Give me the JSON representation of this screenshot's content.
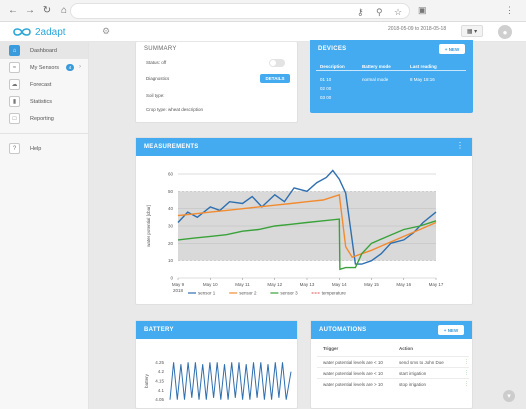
{
  "browser": {
    "back_icon": "arrow-left-icon",
    "forward_icon": "arrow-right-icon",
    "reload_icon": "reload-icon",
    "home_icon": "home-icon"
  },
  "header": {
    "logo_text": "2adapt",
    "date_range": "2018-05-09 to 2018-05-18"
  },
  "sidebar": {
    "items": [
      {
        "label": "Dashboard",
        "icon": "home-icon"
      },
      {
        "label": "My Sensors",
        "icon": "rss-icon",
        "badge": "4"
      },
      {
        "label": "Forecast",
        "icon": "cloud-icon"
      },
      {
        "label": "Statistics",
        "icon": "chart-icon"
      },
      {
        "label": "Reporting",
        "icon": "document-icon"
      },
      {
        "label": "Help",
        "icon": "help-icon"
      }
    ]
  },
  "summary": {
    "title": "SUMMARY",
    "status_label": "Status: off",
    "diagnostics_label": "Diagnostics",
    "details_button": "DETAILS",
    "soil_type": "Soil type:",
    "crop_type": "Crop type: wheat description"
  },
  "devices": {
    "title": "DEVICES",
    "new_button": "NEW",
    "columns": [
      "Description",
      "Battery mode",
      "Last reading"
    ],
    "rows": [
      [
        "01 10",
        "normal mode",
        "8 May 18:16"
      ],
      [
        "02 00",
        "",
        ""
      ],
      [
        "03 00",
        "",
        ""
      ]
    ]
  },
  "measurements": {
    "title": "MEASUREMENTS"
  },
  "battery": {
    "title": "BATTERY"
  },
  "automations": {
    "title": "AUTOMATIONS",
    "new_button": "NEW",
    "columns": [
      "Trigger",
      "Action"
    ],
    "rows": [
      [
        "water potential levels are < 10",
        "send sms to John Doe"
      ],
      [
        "water potential levels are < 10",
        "start irrigation"
      ],
      [
        "water potential levels are > 10",
        "stop irrigation"
      ]
    ]
  },
  "chart_data": [
    {
      "type": "line",
      "ylabel": "water potential [cbar]",
      "ylim": [
        0,
        60
      ],
      "yticks": [
        "0",
        "10",
        "20",
        "30",
        "40",
        "50",
        "60"
      ],
      "xticks": [
        "May 9",
        "May 10",
        "May 11",
        "May 12",
        "May 13",
        "May 14",
        "May 15",
        "May 16",
        "May 17"
      ],
      "x_sublabel": "2018",
      "grid": true,
      "shaded_band": [
        10,
        50
      ],
      "series": [
        {
          "name": "sensor 1",
          "color": "#2f6fb0",
          "x": [
            0,
            0.3,
            0.6,
            1,
            1.3,
            1.6,
            2,
            2.3,
            2.6,
            3,
            3.3,
            3.6,
            4,
            4.3,
            4.6,
            4.8,
            5,
            5.2,
            5.5,
            5.7,
            6,
            6.3,
            6.6,
            7,
            7.3,
            7.6,
            8
          ],
          "values": [
            32,
            38,
            35,
            41,
            39,
            44,
            43,
            47,
            41,
            48,
            44,
            52,
            50,
            55,
            58,
            62,
            57,
            49,
            8,
            8,
            10,
            14,
            20,
            22,
            26,
            32,
            38
          ]
        },
        {
          "name": "sensor 2",
          "color": "#f28b30",
          "x": [
            0,
            0.5,
            1,
            1.5,
            2,
            2.5,
            3,
            3.5,
            4,
            4.5,
            5,
            5.2,
            5.4,
            5.7,
            6,
            6.5,
            7,
            7.5,
            8
          ],
          "values": [
            36,
            37,
            38,
            39,
            40,
            41,
            42,
            43,
            44,
            45,
            48,
            18,
            12,
            14,
            16,
            20,
            24,
            28,
            32
          ]
        },
        {
          "name": "sensor 3",
          "color": "#3aa23a",
          "x": [
            0,
            0.5,
            1,
            1.5,
            2,
            2.5,
            3,
            3.5,
            4,
            4.5,
            5,
            5.02,
            5.2,
            5.5,
            5.7,
            6,
            6.5,
            7,
            7.5,
            8
          ],
          "values": [
            22,
            23,
            24,
            25,
            27,
            28,
            30,
            31,
            32,
            33,
            34,
            5,
            6,
            6,
            14,
            20,
            24,
            28,
            30,
            33
          ]
        },
        {
          "name": "temperature",
          "color": "#e57373",
          "x": [],
          "values": []
        }
      ]
    },
    {
      "type": "line",
      "ylabel": "battery",
      "yticks": [
        "4.25",
        "4.2",
        "4.15",
        "4.1",
        "4.05"
      ],
      "ylim": [
        4.0,
        4.3
      ],
      "series": [
        {
          "name": "battery",
          "color": "#2f6fb0",
          "x": [
            0,
            0.03,
            0.06,
            0.09,
            0.12,
            0.15,
            0.18,
            0.21,
            0.24,
            0.27,
            0.3,
            0.33,
            0.36,
            0.39,
            0.42,
            0.45,
            0.48,
            0.51,
            0.54,
            0.57,
            0.6,
            0.63,
            0.66,
            0.69,
            0.72,
            0.75,
            0.78,
            0.81,
            0.84,
            0.87,
            0.9,
            0.93,
            0.96,
            1.0
          ],
          "values": [
            4.05,
            4.25,
            4.05,
            4.24,
            4.05,
            4.25,
            4.06,
            4.25,
            4.05,
            4.24,
            4.05,
            4.25,
            4.06,
            4.25,
            4.05,
            4.24,
            4.05,
            4.25,
            4.06,
            4.25,
            4.05,
            4.24,
            4.05,
            4.25,
            4.06,
            4.25,
            4.05,
            4.24,
            4.05,
            4.25,
            4.06,
            4.25,
            4.05,
            4.2
          ]
        }
      ]
    }
  ]
}
